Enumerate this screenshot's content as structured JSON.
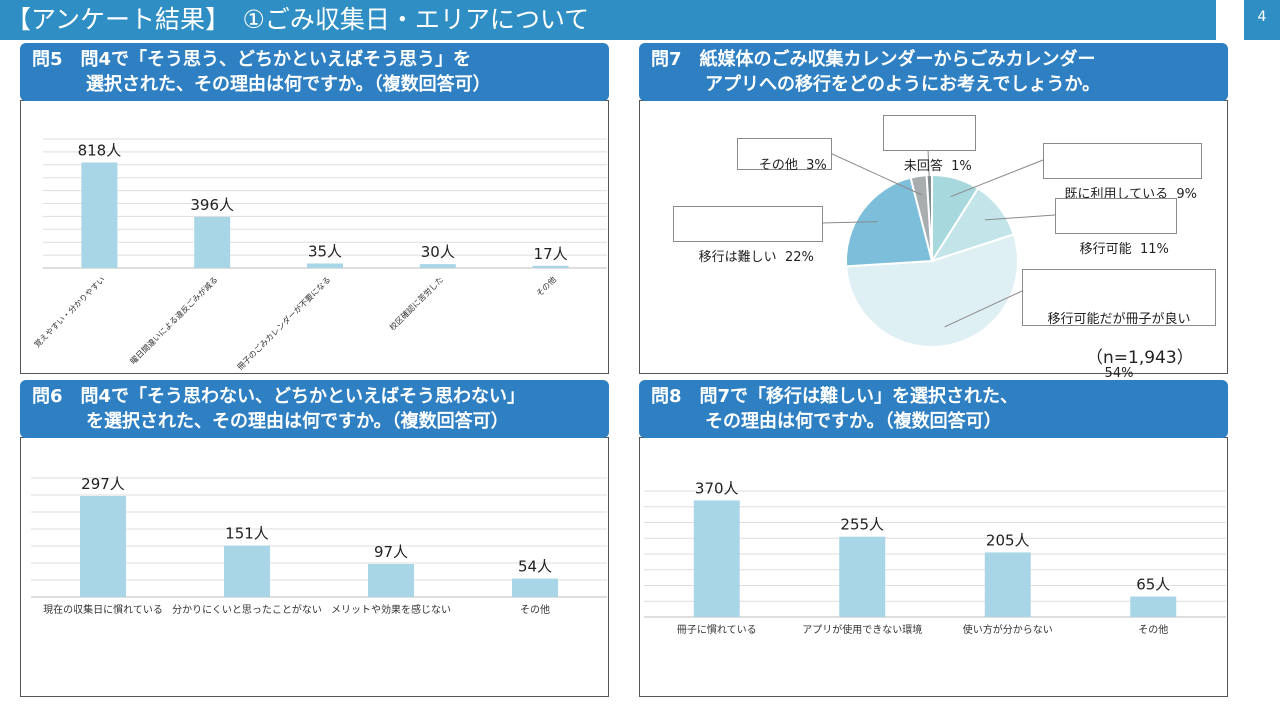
{
  "header": {
    "title": "【アンケート結果】　①ごみ収集日・エリアについて",
    "page_number": "4"
  },
  "panels": {
    "q5": {
      "line1": "問5　問4で「そう思う、どちかといえばそう思う」を",
      "line2": "　　　選択された、その理由は何ですか。（複数回答可）"
    },
    "q6": {
      "line1": "問6　問4で「そう思わない、どちかといえばそう思わない」",
      "line2": "　　　を選択された、その理由は何ですか。（複数回答可）"
    },
    "q7": {
      "line1": "問7　紙媒体のごみ収集カレンダーからごみカレンダー",
      "line2": "　　　アプリへの移行をどのようにお考えでしょうか。",
      "n_note": "（n=1,943）"
    },
    "q8": {
      "line1": "問8　問7で「移行は難しい」を選択された、",
      "line2": "　　　その理由は何ですか。（複数回答可）"
    }
  },
  "chart_data": [
    {
      "id": "q5",
      "type": "bar",
      "categories": [
        "覚えやすい・分かりやすい",
        "曜日間違いによる違反ごみが減る",
        "冊子のごみカレンダーが不要になる",
        "校区確認に苦労した",
        "その他"
      ],
      "values": [
        818,
        396,
        35,
        30,
        17
      ],
      "data_labels": [
        "818人",
        "396人",
        "35人",
        "30人",
        "17人"
      ],
      "ylim": [
        0,
        1000
      ],
      "grid": true,
      "color": "#a9d6e7"
    },
    {
      "id": "q6",
      "type": "bar",
      "categories": [
        "現在の収集日に慣れている",
        "分かりにくいと思ったことがない",
        "メリットや効果を感じない",
        "その他"
      ],
      "values": [
        297,
        151,
        97,
        54
      ],
      "data_labels": [
        "297人",
        "151人",
        "97人",
        "54人"
      ],
      "ylim": [
        0,
        350
      ],
      "grid": true,
      "color": "#a9d6e7"
    },
    {
      "id": "q7",
      "type": "pie",
      "slices": [
        {
          "label": "既に利用している",
          "pct_label": "9%",
          "value": 9,
          "color": "#a6d8dd"
        },
        {
          "label": "移行可能",
          "pct_label": "11%",
          "value": 11,
          "color": "#c3e5ea"
        },
        {
          "label": "移行可能だが冊子が良い",
          "pct_label": "54%",
          "value": 54,
          "color": "#dff0f4"
        },
        {
          "label": "移行は難しい",
          "pct_label": "22%",
          "value": 22,
          "color": "#7dbedb"
        },
        {
          "label": "その他",
          "pct_label": "3%",
          "value": 3,
          "color": "#a8aeb0"
        },
        {
          "label": "未回答",
          "pct_label": "1%",
          "value": 1,
          "color": "#7e8b8f"
        }
      ]
    },
    {
      "id": "q8",
      "type": "bar",
      "categories": [
        "冊子に慣れている",
        "アプリが使用できない環境",
        "使い方が分からない",
        "その他"
      ],
      "values": [
        370,
        255,
        205,
        65
      ],
      "data_labels": [
        "370人",
        "255人",
        "205人",
        "65人"
      ],
      "ylim": [
        0,
        400
      ],
      "grid": true,
      "color": "#a9d6e7"
    }
  ]
}
